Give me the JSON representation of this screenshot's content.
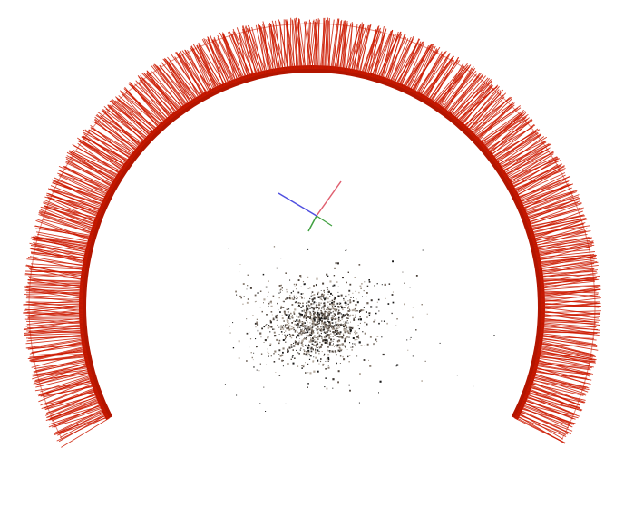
{
  "scene": {
    "background_color": "#ffffff",
    "camera_color": "#cc1a00",
    "camera_dark_color": "#b31500",
    "point_cloud_colors": [
      "#1a1a1a",
      "#3a3430",
      "#6b5f55",
      "#8c8074",
      "#b3a89c",
      "#4a4038"
    ],
    "axes": {
      "x_color": "#e06070",
      "y_color": "#40a040",
      "z_color": "#5050e0"
    }
  }
}
